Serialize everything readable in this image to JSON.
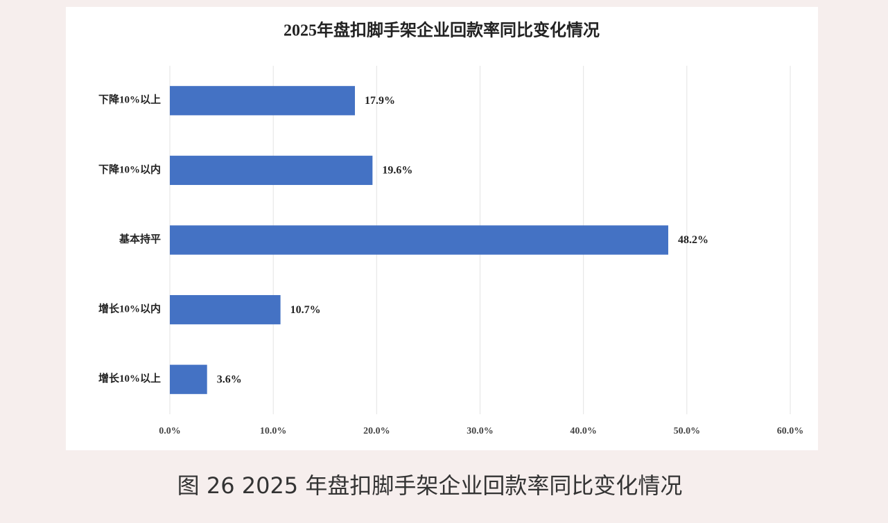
{
  "chart_data": {
    "type": "bar",
    "orientation": "horizontal",
    "title": "2025年盘扣脚手架企业回款率同比变化情况",
    "caption": "图 26 2025 年盘扣脚手架企业回款率同比变化情况",
    "categories": [
      "下降10%以上",
      "下降10%以内",
      "基本持平",
      "增长10%以内",
      "增长10%以上"
    ],
    "values": [
      17.9,
      19.6,
      48.2,
      10.7,
      3.6
    ],
    "value_labels": [
      "17.9%",
      "19.6%",
      "48.2%",
      "10.7%",
      "3.6%"
    ],
    "color": "#4472c4",
    "xlim": [
      0,
      60
    ],
    "xticks": [
      {
        "value": 0,
        "label": "0.0%"
      },
      {
        "value": 10,
        "label": "10.0%"
      },
      {
        "value": 20,
        "label": "20.0%"
      },
      {
        "value": 30,
        "label": "30.0%"
      },
      {
        "value": 40,
        "label": "40.0%"
      },
      {
        "value": 50,
        "label": "50.0%"
      },
      {
        "value": 60,
        "label": "60.0%"
      }
    ],
    "grid": true
  }
}
